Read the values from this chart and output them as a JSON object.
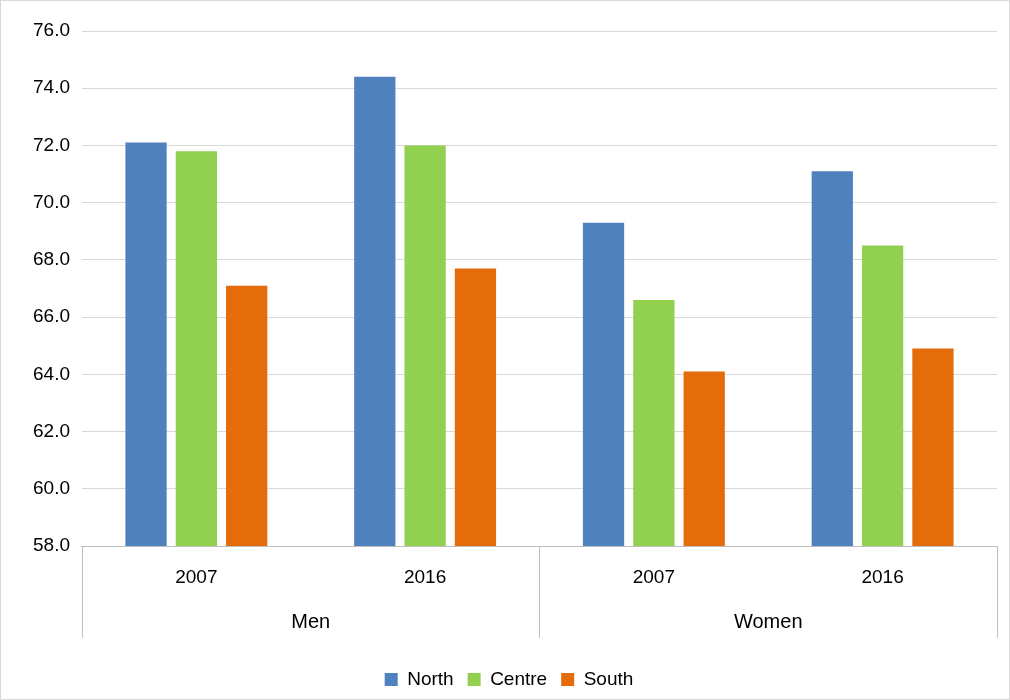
{
  "chart_data": {
    "type": "bar",
    "categories": [
      "2007",
      "2016",
      "2007",
      "2016"
    ],
    "annotations": [
      "Men",
      "Women"
    ],
    "series": [
      {
        "name": "North",
        "color": "#4f81bd",
        "values": [
          72.1,
          74.4,
          69.3,
          71.1
        ]
      },
      {
        "name": "Centre",
        "color": "#92d050",
        "values": [
          71.8,
          72.0,
          66.6,
          68.5
        ]
      },
      {
        "name": "South",
        "color": "#e46c0a",
        "values": [
          67.1,
          67.7,
          64.1,
          64.9
        ]
      }
    ],
    "ylim": [
      58,
      76
    ],
    "yticks": [
      {
        "value": 58,
        "label": "58.0"
      },
      {
        "value": 60,
        "label": "60.0"
      },
      {
        "value": 62,
        "label": "62.0"
      },
      {
        "value": 64,
        "label": "64.0"
      },
      {
        "value": 66,
        "label": "66.0"
      },
      {
        "value": 68,
        "label": "68.0"
      },
      {
        "value": 70,
        "label": "70.0"
      },
      {
        "value": 72,
        "label": "72.0"
      },
      {
        "value": 74,
        "label": "74.0"
      },
      {
        "value": 76,
        "label": "76.0"
      }
    ],
    "grid": "y",
    "legend": "bottom"
  }
}
